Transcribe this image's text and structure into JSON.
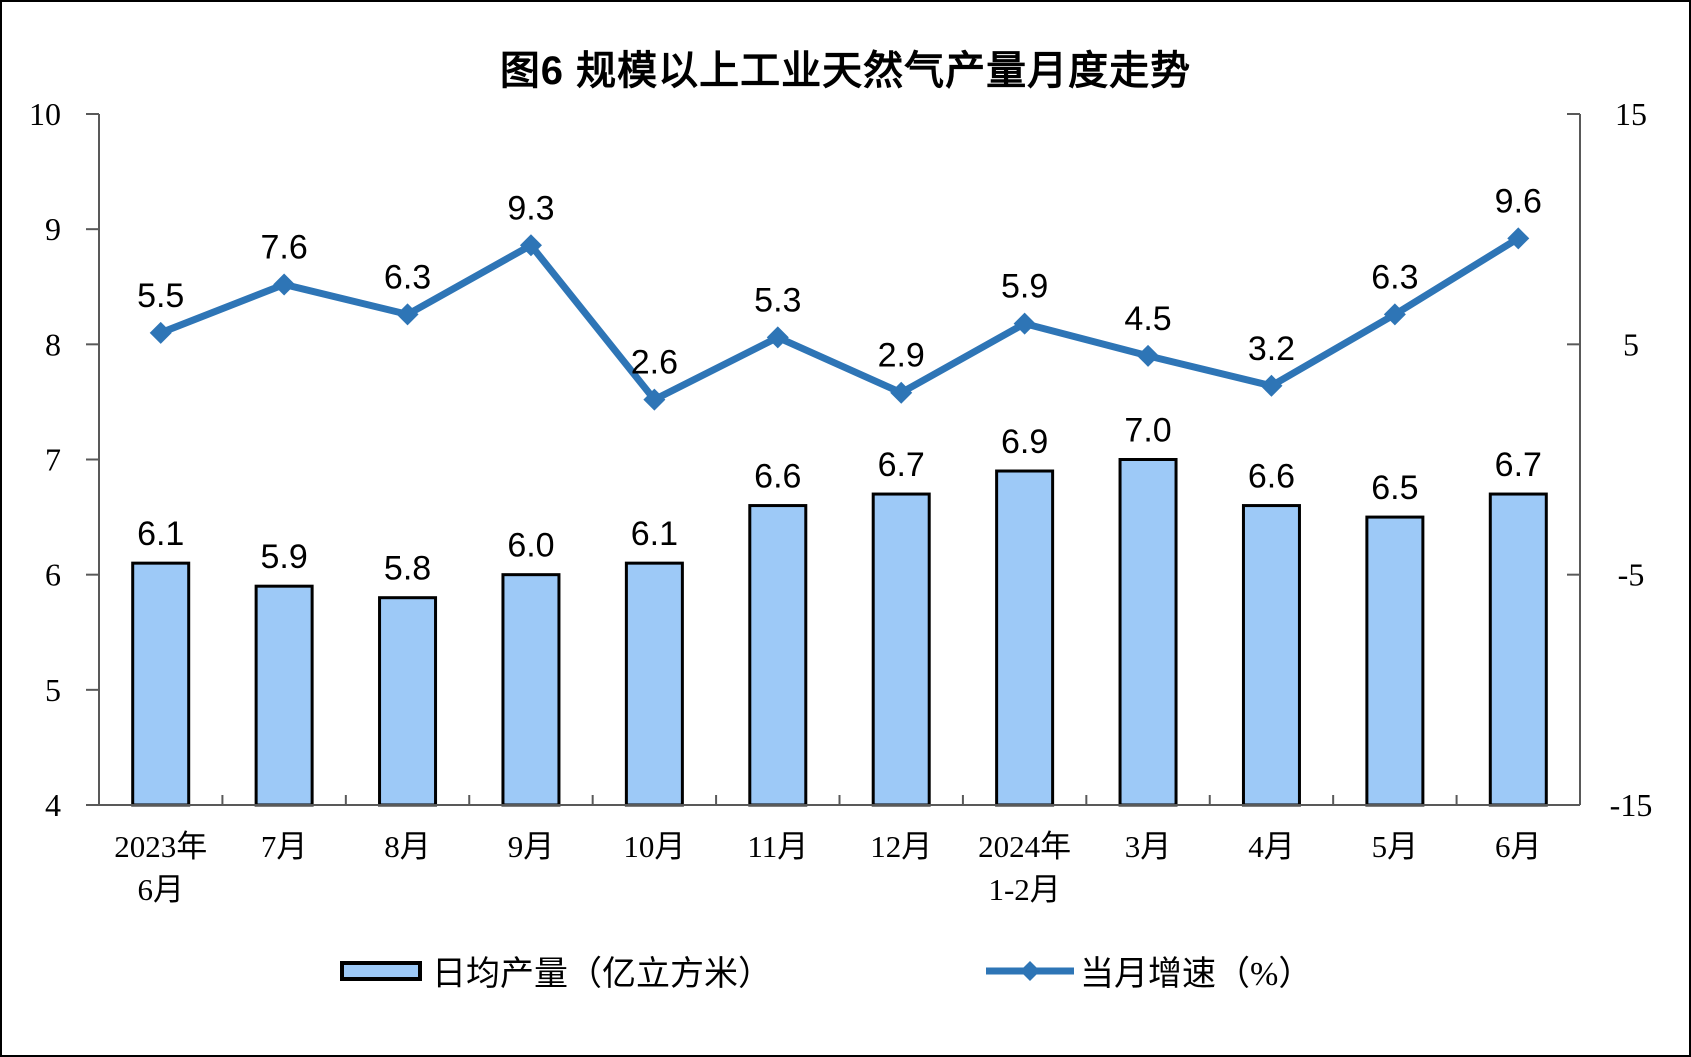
{
  "chart_data": {
    "type": "combo",
    "title": "图6 规模以上工业天然气产量月度走势",
    "categories": [
      [
        "2023年",
        "6月"
      ],
      [
        "7月"
      ],
      [
        "8月"
      ],
      [
        "9月"
      ],
      [
        "10月"
      ],
      [
        "11月"
      ],
      [
        "12月"
      ],
      [
        "2024年",
        "1-2月"
      ],
      [
        "3月"
      ],
      [
        "4月"
      ],
      [
        "5月"
      ],
      [
        "6月"
      ]
    ],
    "series": [
      {
        "name": "日均产量（亿立方米）",
        "type": "bar",
        "axis": "left",
        "values": [
          6.1,
          5.9,
          5.8,
          6.0,
          6.1,
          6.6,
          6.7,
          6.9,
          7.0,
          6.6,
          6.5,
          6.7
        ]
      },
      {
        "name": "当月增速（%）",
        "type": "line",
        "axis": "right",
        "values": [
          5.5,
          7.6,
          6.3,
          9.3,
          2.6,
          5.3,
          2.9,
          5.9,
          4.5,
          3.2,
          6.3,
          9.6
        ]
      }
    ],
    "left_axis": {
      "min": 4,
      "max": 10,
      "ticks": [
        4,
        5,
        6,
        7,
        8,
        9,
        10
      ]
    },
    "right_axis": {
      "min": -15,
      "max": 15,
      "ticks": [
        -15,
        -5,
        5,
        15
      ]
    },
    "colors": {
      "bar_fill": "#9DC9F7",
      "bar_border": "#000000",
      "line": "#2E75B6",
      "axis": "#595959",
      "label": "#000000"
    },
    "legend_position": "bottom",
    "grid": false,
    "background": "#FFFFFF"
  }
}
